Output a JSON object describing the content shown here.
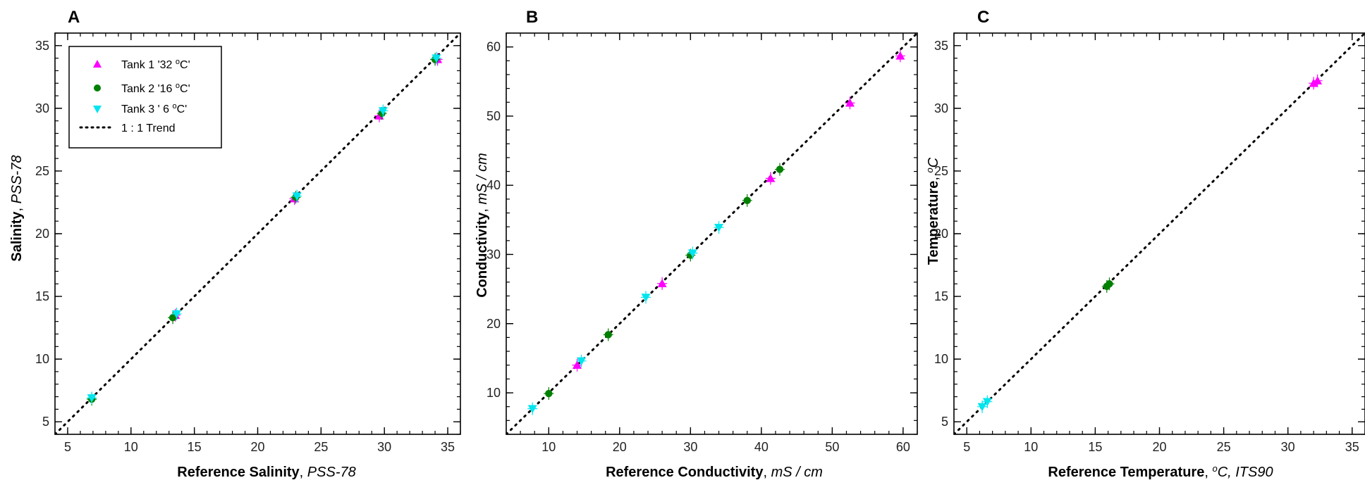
{
  "chart_data": [
    {
      "panel": "A",
      "type": "scatter",
      "xlabel": {
        "bold": "Reference Salinity",
        "italic": "PSS-78"
      },
      "ylabel": {
        "bold": "Salinity",
        "italic": "PSS-78"
      },
      "xlim": [
        4,
        36
      ],
      "ylim": [
        4,
        36
      ],
      "xticks": [
        5,
        10,
        15,
        20,
        25,
        30,
        35
      ],
      "yticks": [
        5,
        10,
        15,
        20,
        25,
        30,
        35
      ],
      "legend": {
        "placement": "top-left",
        "entries": [
          {
            "pre": "Tank 1 '32 ",
            "sup": "o",
            "post": "C'",
            "marker": "triangle-up",
            "color": "#ff00ff"
          },
          {
            "pre": "Tank 2 '16 ",
            "sup": "o",
            "post": "C'",
            "marker": "circle",
            "color": "#008000"
          },
          {
            "pre": "Tank  3 ' 6 ",
            "sup": "o",
            "post": "C'",
            "marker": "triangle-down",
            "color": "#00e5ee"
          },
          {
            "pre": "1 : 1 Trend",
            "sup": "",
            "post": "",
            "marker": "dotted-line",
            "color": "#000000"
          }
        ]
      },
      "trend": {
        "x": [
          4,
          36
        ],
        "y": [
          4,
          36
        ]
      },
      "series": [
        {
          "marker": "triangle-up",
          "color": "#ff00ff",
          "x": [
            13.5,
            22.9,
            29.6,
            34.2
          ],
          "y": [
            13.5,
            22.8,
            29.4,
            33.9
          ]
        },
        {
          "marker": "circle",
          "color": "#008000",
          "x": [
            6.9,
            13.3,
            23.0,
            29.8,
            34.0
          ],
          "y": [
            6.8,
            13.3,
            22.9,
            29.6,
            33.9
          ]
        },
        {
          "marker": "triangle-down",
          "color": "#00e5ee",
          "x": [
            6.9,
            13.6,
            23.1,
            29.9,
            34.1
          ],
          "y": [
            6.9,
            13.6,
            23.0,
            29.8,
            34.0
          ]
        }
      ]
    },
    {
      "panel": "B",
      "type": "scatter",
      "xlabel": {
        "bold": "Reference Conductivity",
        "italic": "mS / cm"
      },
      "ylabel": {
        "bold": "Conductivity",
        "italic": "mS / cm"
      },
      "xlim": [
        4,
        62
      ],
      "ylim": [
        4,
        62
      ],
      "xticks": [
        10,
        20,
        30,
        40,
        50,
        60
      ],
      "yticks": [
        10,
        20,
        30,
        40,
        50,
        60
      ],
      "trend": {
        "x": [
          4,
          62
        ],
        "y": [
          4,
          62
        ]
      },
      "series": [
        {
          "marker": "triangle-up",
          "color": "#ff00ff",
          "x": [
            14.0,
            26.0,
            41.3,
            52.5,
            59.6
          ],
          "y": [
            14.0,
            25.8,
            41.0,
            51.9,
            58.7
          ]
        },
        {
          "marker": "circle",
          "color": "#008000",
          "x": [
            10.0,
            18.4,
            30.0,
            38.0,
            42.6
          ],
          "y": [
            9.9,
            18.4,
            29.9,
            37.8,
            42.3
          ]
        },
        {
          "marker": "triangle-down",
          "color": "#00e5ee",
          "x": [
            7.7,
            14.6,
            23.7,
            30.3,
            34.0
          ],
          "y": [
            7.7,
            14.6,
            23.8,
            30.2,
            33.9
          ]
        }
      ]
    },
    {
      "panel": "C",
      "type": "scatter",
      "xlabel": {
        "bold": "Reference Temperature",
        "italic": ", ITS90",
        "sup": "o",
        "unit": "C"
      },
      "ylabel": {
        "bold": "Temperature",
        "sup": "o",
        "unit": "C"
      },
      "xlim": [
        4,
        36
      ],
      "ylim": [
        4,
        36
      ],
      "xticks": [
        5,
        10,
        15,
        20,
        25,
        30,
        35
      ],
      "yticks": [
        5,
        10,
        15,
        20,
        25,
        30,
        35
      ],
      "trend": {
        "x": [
          4,
          36
        ],
        "y": [
          4,
          36
        ]
      },
      "series": [
        {
          "marker": "triangle-up",
          "color": "#ff00ff",
          "x": [
            32.0,
            32.3
          ],
          "y": [
            32.0,
            32.2
          ]
        },
        {
          "marker": "circle",
          "color": "#008000",
          "x": [
            15.9,
            16.1
          ],
          "y": [
            15.8,
            16.0
          ]
        },
        {
          "marker": "triangle-down",
          "color": "#00e5ee",
          "x": [
            6.2,
            6.6
          ],
          "y": [
            6.2,
            6.6
          ]
        }
      ]
    }
  ]
}
